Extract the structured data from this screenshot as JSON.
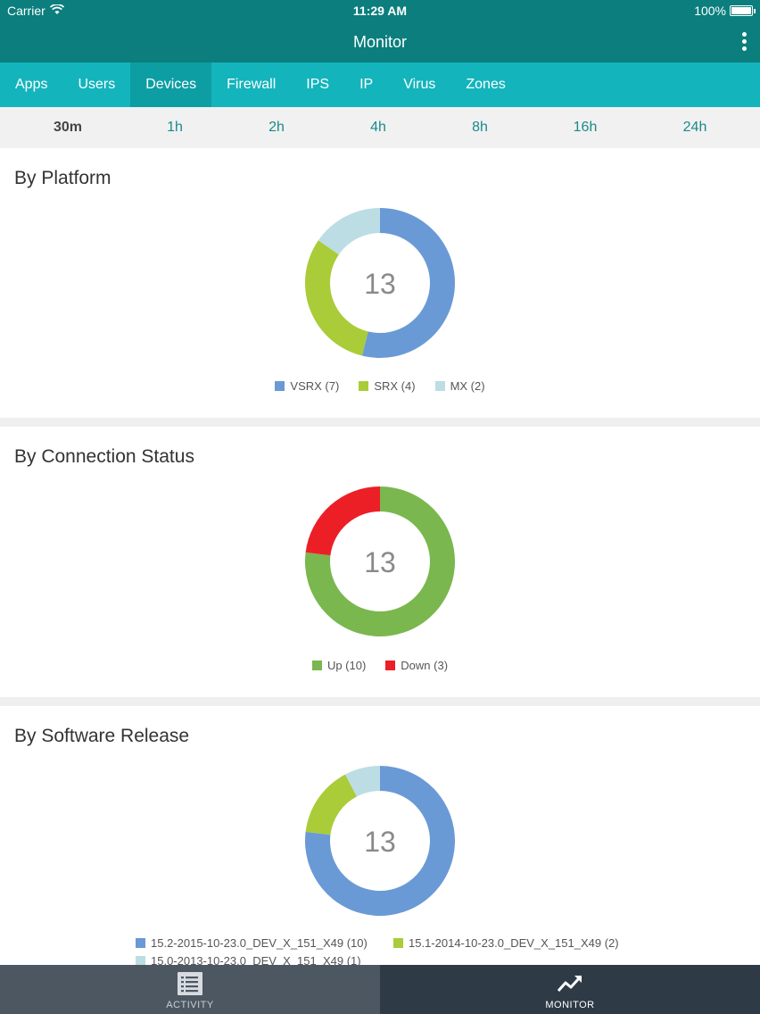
{
  "status_bar": {
    "carrier": "Carrier",
    "time": "11:29 AM",
    "battery": "100%"
  },
  "nav": {
    "title": "Monitor",
    "menu_icon": "kebab-menu-icon"
  },
  "tabs": [
    {
      "label": "Apps",
      "active": false
    },
    {
      "label": "Users",
      "active": false
    },
    {
      "label": "Devices",
      "active": true
    },
    {
      "label": "Firewall",
      "active": false
    },
    {
      "label": "IPS",
      "active": false
    },
    {
      "label": "IP",
      "active": false
    },
    {
      "label": "Virus",
      "active": false
    },
    {
      "label": "Zones",
      "active": false
    }
  ],
  "time_range": {
    "options": [
      "30m",
      "1h",
      "2h",
      "4h",
      "8h",
      "16h",
      "24h"
    ],
    "selected": "30m"
  },
  "colors": {
    "vsrx": "#6a9ad6",
    "srx": "#a9cc38",
    "mx": "#bcdde4",
    "up": "#7ab74e",
    "down": "#ec1f27",
    "rel_152": "#6a9ad6",
    "rel_151": "#a9cc38",
    "rel_150": "#bcdde4"
  },
  "sections": {
    "platform": {
      "title": "By Platform",
      "total": "13",
      "legend": [
        "VSRX (7)",
        "SRX (4)",
        "MX (2)"
      ]
    },
    "connection": {
      "title": "By Connection Status",
      "total": "13",
      "legend": [
        "Up (10)",
        "Down (3)"
      ]
    },
    "software": {
      "title": "By Software Release",
      "total": "13",
      "legend": [
        "15.2-2015-10-23.0_DEV_X_151_X49 (10)",
        "15.1-2014-10-23.0_DEV_X_151_X49 (2)",
        "15.0-2013-10-23.0_DEV_X_151_X49 (1)"
      ]
    }
  },
  "chart_data": [
    {
      "type": "pie",
      "title": "By Platform",
      "categories": [
        "VSRX",
        "SRX",
        "MX"
      ],
      "values": [
        7,
        4,
        2
      ],
      "colors": [
        "#6a9ad6",
        "#a9cc38",
        "#bcdde4"
      ],
      "center_label": "13",
      "legend_position": "bottom"
    },
    {
      "type": "pie",
      "title": "By Connection Status",
      "categories": [
        "Up",
        "Down"
      ],
      "values": [
        10,
        3
      ],
      "colors": [
        "#7ab74e",
        "#ec1f27"
      ],
      "center_label": "13",
      "legend_position": "bottom"
    },
    {
      "type": "pie",
      "title": "By Software Release",
      "categories": [
        "15.2-2015-10-23.0_DEV_X_151_X49",
        "15.1-2014-10-23.0_DEV_X_151_X49",
        "15.0-2013-10-23.0_DEV_X_151_X49"
      ],
      "values": [
        10,
        2,
        1
      ],
      "colors": [
        "#6a9ad6",
        "#a9cc38",
        "#bcdde4"
      ],
      "center_label": "13",
      "legend_position": "bottom"
    }
  ],
  "bottom_nav": [
    {
      "label": "ACTIVITY",
      "icon": "list-icon",
      "active": false
    },
    {
      "label": "MONITOR",
      "icon": "trend-up-icon",
      "active": true
    }
  ]
}
